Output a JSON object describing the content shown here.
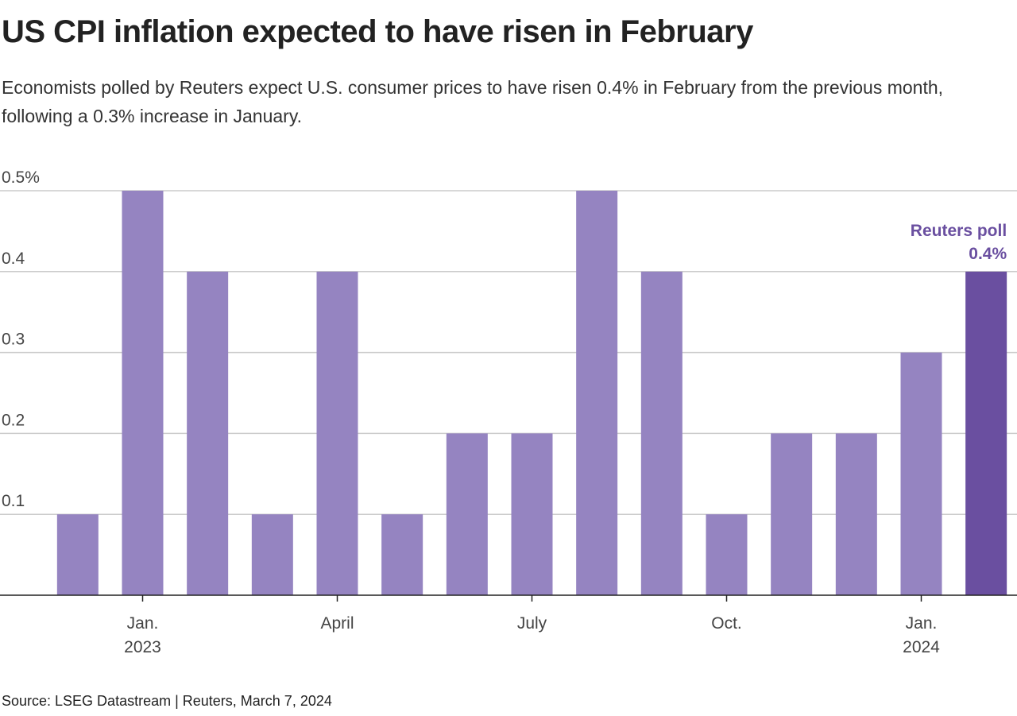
{
  "chart_data": {
    "type": "bar",
    "title": "US CPI inflation expected to have risen in February",
    "subtitle": "Economists polled by Reuters expect U.S. consumer prices to have risen 0.4% in February from the previous month, following a 0.3% increase in January.",
    "source": "Source: LSEG Datastream | Reuters, March 7, 2024",
    "annotation": "Reuters poll",
    "categories": [
      null,
      "Jan. 2023",
      null,
      null,
      "April",
      null,
      null,
      "July",
      null,
      null,
      "Oct.",
      null,
      null,
      "Jan. 2024",
      null
    ],
    "values": [
      0.1,
      0.5,
      0.4,
      0.1,
      0.4,
      0.1,
      0.2,
      0.2,
      0.5,
      0.4,
      0.1,
      0.2,
      0.2,
      0.3,
      0.4
    ],
    "value_labels": [
      null,
      null,
      null,
      null,
      null,
      null,
      null,
      null,
      null,
      null,
      null,
      null,
      null,
      null,
      "0.4%"
    ],
    "colors": [
      "#9584c1",
      "#9584c1",
      "#9584c1",
      "#9584c1",
      "#9584c1",
      "#9584c1",
      "#9584c1",
      "#9584c1",
      "#9584c1",
      "#9584c1",
      "#9584c1",
      "#9584c1",
      "#9584c1",
      "#9584c1",
      "#6a4fa0"
    ],
    "ylim": [
      0,
      0.5
    ],
    "yticks": [
      0.1,
      0.2,
      0.3,
      0.4,
      {
        "value": 0.5,
        "label": "0.5%"
      }
    ],
    "grid": true
  }
}
